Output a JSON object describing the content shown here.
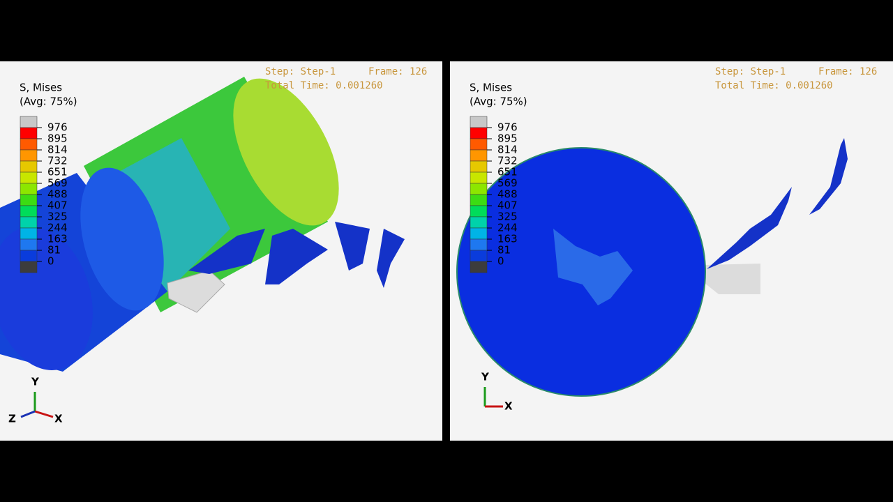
{
  "panels": [
    {
      "legend": {
        "title": "S, Mises",
        "subtitle": "(Avg: 75%)",
        "labels": [
          976,
          895,
          814,
          732,
          651,
          569,
          488,
          407,
          325,
          244,
          163,
          81,
          0
        ],
        "colors": [
          "#c8c8c8",
          "#ff0000",
          "#ff5a00",
          "#ff9600",
          "#e6c800",
          "#c8e600",
          "#8ce600",
          "#3cdc14",
          "#00dc5a",
          "#00d2aa",
          "#00b4e6",
          "#1e78f0",
          "#0a3cdc",
          "#3c3c3c"
        ]
      },
      "step": "Step: Step-1",
      "frame": "Frame: 126",
      "time": "Total Time: 0.001260",
      "axes": {
        "y": "Y",
        "z": "Z",
        "x": "X"
      }
    },
    {
      "legend": {
        "title": "S, Mises",
        "subtitle": "(Avg: 75%)",
        "labels": [
          976,
          895,
          814,
          732,
          651,
          569,
          488,
          407,
          325,
          244,
          163,
          81,
          0
        ],
        "colors": [
          "#c8c8c8",
          "#ff0000",
          "#ff5a00",
          "#ff9600",
          "#e6c800",
          "#c8e600",
          "#8ce600",
          "#3cdc14",
          "#00dc5a",
          "#00d2aa",
          "#00b4e6",
          "#1e78f0",
          "#0a3cdc",
          "#3c3c3c"
        ]
      },
      "step": "Step: Step-1",
      "frame": "Frame: 126",
      "time": "Total Time: 0.001260",
      "axes": {
        "y": "Y",
        "x": "X"
      }
    }
  ]
}
